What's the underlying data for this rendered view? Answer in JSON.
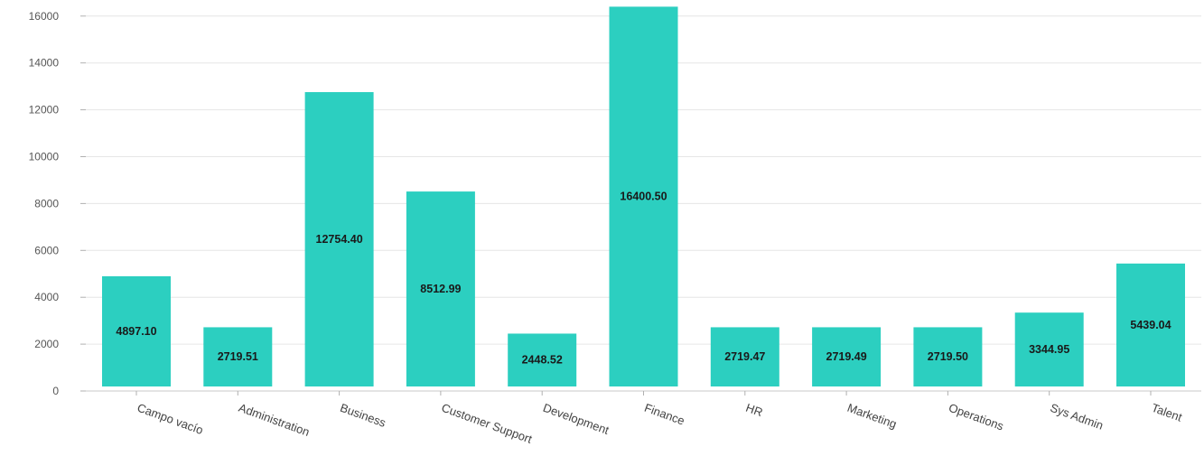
{
  "chart_data": {
    "type": "bar",
    "title": "",
    "xlabel": "",
    "ylabel": "",
    "categories": [
      "Campo vacío",
      "Administration",
      "Business",
      "Customer Support",
      "Development",
      "Finance",
      "HR",
      "Marketing",
      "Operations",
      "Sys Admin",
      "Talent"
    ],
    "values": [
      4897.1,
      2719.51,
      12754.4,
      8512.99,
      2448.52,
      16400.5,
      2719.47,
      2719.49,
      2719.5,
      3344.95,
      5439.04
    ],
    "data_labels": [
      "4897.10",
      "2719.51",
      "12754.40",
      "8512.99",
      "2448.52",
      "16400.50",
      "2719.47",
      "2719.49",
      "2719.50",
      "3344.95",
      "5439.04"
    ],
    "ylim": [
      0,
      16400
    ],
    "yticks": [
      0,
      2000,
      4000,
      6000,
      8000,
      10000,
      12000,
      14000,
      16000
    ],
    "grid": true,
    "legend": "none",
    "bar_color": "#2ccfc0"
  }
}
